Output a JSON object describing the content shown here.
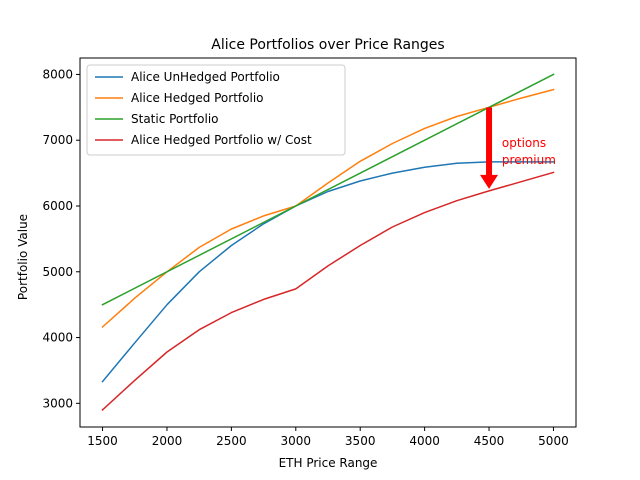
{
  "chart_data": {
    "type": "line",
    "title": "Alice Portfolios over Price Ranges",
    "xlabel": "ETH Price Range",
    "ylabel": "Portfolio Value",
    "xlim": [
      1325,
      5175
    ],
    "ylim": [
      2640,
      8250
    ],
    "xticks": [
      1500,
      2000,
      2500,
      3000,
      3500,
      4000,
      4500,
      5000
    ],
    "yticks": [
      3000,
      4000,
      5000,
      6000,
      7000,
      8000
    ],
    "grid": false,
    "legend_position": "top-left",
    "series": [
      {
        "name": "Alice UnHedged Portfolio",
        "color": "#1f77b4",
        "x": [
          1500,
          1750,
          2000,
          2250,
          2500,
          2750,
          3000,
          3250,
          3500,
          3750,
          4000,
          4250,
          4500,
          4750,
          5000
        ],
        "y": [
          3330,
          3920,
          4500,
          5000,
          5400,
          5730,
          6000,
          6220,
          6380,
          6500,
          6590,
          6650,
          6670,
          6670,
          6670
        ]
      },
      {
        "name": "Alice Hedged Portfolio",
        "color": "#ff7f0e",
        "x": [
          1500,
          1750,
          2000,
          2250,
          2500,
          2750,
          3000,
          3250,
          3500,
          3750,
          4000,
          4250,
          4500,
          4750,
          5000
        ],
        "y": [
          4160,
          4600,
          5000,
          5370,
          5650,
          5850,
          6000,
          6350,
          6680,
          6950,
          7180,
          7360,
          7500,
          7640,
          7770
        ]
      },
      {
        "name": "Static Portfolio",
        "color": "#2ca02c",
        "x": [
          1500,
          5000
        ],
        "y": [
          4500,
          8000
        ]
      },
      {
        "name": "Alice Hedged Portfolio w/ Cost",
        "color": "#d62728",
        "x": [
          1500,
          1750,
          2000,
          2250,
          2500,
          2750,
          3000,
          3250,
          3500,
          3750,
          4000,
          4250,
          4500,
          4750,
          5000
        ],
        "y": [
          2900,
          3350,
          3780,
          4120,
          4380,
          4580,
          4740,
          5090,
          5400,
          5680,
          5900,
          6080,
          6230,
          6370,
          6510
        ]
      }
    ],
    "annotation": {
      "text_lines": [
        "options",
        "premium"
      ],
      "color": "#ff0000",
      "arrow_x": 4500,
      "arrow_from_y": 7500,
      "arrow_to_y": 6260,
      "text_x": 4600,
      "text_y": 6900
    }
  }
}
